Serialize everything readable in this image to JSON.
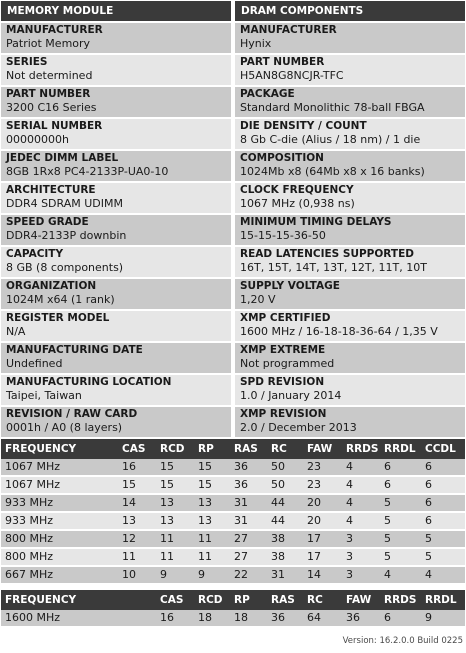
{
  "module": {
    "header": "MEMORY MODULE",
    "fields": [
      {
        "label": "MANUFACTURER",
        "value": "Patriot Memory"
      },
      {
        "label": "SERIES",
        "value": "Not determined"
      },
      {
        "label": "PART NUMBER",
        "value": "3200 C16 Series"
      },
      {
        "label": "SERIAL NUMBER",
        "value": "00000000h"
      },
      {
        "label": "JEDEC DIMM LABEL",
        "value": "8GB 1Rx8 PC4-2133P-UA0-10"
      },
      {
        "label": "ARCHITECTURE",
        "value": "DDR4 SDRAM UDIMM"
      },
      {
        "label": "SPEED GRADE",
        "value": "DDR4-2133P downbin"
      },
      {
        "label": "CAPACITY",
        "value": "8 GB (8 components)"
      },
      {
        "label": "ORGANIZATION",
        "value": "1024M x64 (1 rank)"
      },
      {
        "label": "REGISTER MODEL",
        "value": "N/A"
      },
      {
        "label": "MANUFACTURING DATE",
        "value": "Undefined"
      },
      {
        "label": "MANUFACTURING LOCATION",
        "value": "Taipei, Taiwan"
      },
      {
        "label": "REVISION / RAW CARD",
        "value": "0001h / A0 (8 layers)"
      }
    ]
  },
  "dram": {
    "header": "DRAM COMPONENTS",
    "fields": [
      {
        "label": "MANUFACTURER",
        "value": "Hynix"
      },
      {
        "label": "PART NUMBER",
        "value": "H5AN8G8NCJR-TFC"
      },
      {
        "label": "PACKAGE",
        "value": "Standard Monolithic 78-ball FBGA"
      },
      {
        "label": "DIE DENSITY / COUNT",
        "value": "8 Gb C-die (Alius / 18 nm) / 1 die"
      },
      {
        "label": "COMPOSITION",
        "value": "1024Mb x8 (64Mb x8 x 16 banks)"
      },
      {
        "label": "CLOCK FREQUENCY",
        "value": "1067 MHz (0,938 ns)"
      },
      {
        "label": "MINIMUM TIMING DELAYS",
        "value": "15-15-15-36-50"
      },
      {
        "label": "READ LATENCIES SUPPORTED",
        "value": "16T, 15T, 14T, 13T, 12T, 11T, 10T"
      },
      {
        "label": "SUPPLY VOLTAGE",
        "value": "1,20 V"
      },
      {
        "label": "XMP CERTIFIED",
        "value": "1600 MHz / 16-18-18-36-64 / 1,35 V"
      },
      {
        "label": "XMP EXTREME",
        "value": "Not programmed"
      },
      {
        "label": "SPD REVISION",
        "value": "1.0 / January 2014"
      },
      {
        "label": "XMP REVISION",
        "value": "2.0 / December 2013"
      }
    ]
  },
  "jedec_table": {
    "headers": [
      "FREQUENCY",
      "CAS",
      "RCD",
      "RP",
      "RAS",
      "RC",
      "FAW",
      "RRDS",
      "RRDL",
      "CCDL"
    ],
    "rows": [
      [
        "1067 MHz",
        "16",
        "15",
        "15",
        "36",
        "50",
        "23",
        "4",
        "6",
        "6"
      ],
      [
        "1067 MHz",
        "15",
        "15",
        "15",
        "36",
        "50",
        "23",
        "4",
        "6",
        "6"
      ],
      [
        "933 MHz",
        "14",
        "13",
        "13",
        "31",
        "44",
        "20",
        "4",
        "5",
        "6"
      ],
      [
        "933 MHz",
        "13",
        "13",
        "13",
        "31",
        "44",
        "20",
        "4",
        "5",
        "6"
      ],
      [
        "800 MHz",
        "12",
        "11",
        "11",
        "27",
        "38",
        "17",
        "3",
        "5",
        "5"
      ],
      [
        "800 MHz",
        "11",
        "11",
        "11",
        "27",
        "38",
        "17",
        "3",
        "5",
        "5"
      ],
      [
        "667 MHz",
        "10",
        "9",
        "9",
        "22",
        "31",
        "14",
        "3",
        "4",
        "4"
      ]
    ]
  },
  "xmp_table": {
    "headers": [
      "FREQUENCY",
      "CAS",
      "RCD",
      "RP",
      "RAS",
      "RC",
      "FAW",
      "RRDS",
      "RRDL"
    ],
    "rows": [
      [
        "1600 MHz",
        "16",
        "18",
        "18",
        "36",
        "64",
        "36",
        "6",
        "9"
      ]
    ]
  },
  "version": "Version: 16.2.0.0 Build 0225"
}
